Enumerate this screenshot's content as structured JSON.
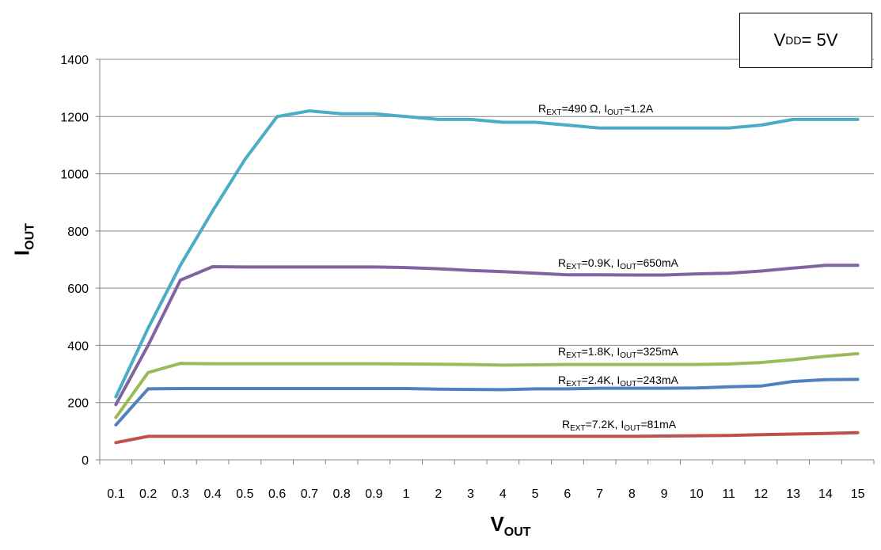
{
  "chart_data": {
    "type": "line",
    "title": "",
    "xlabel": {
      "main": "V",
      "sub": "OUT"
    },
    "ylabel": {
      "main": "I",
      "sub": "OUT"
    },
    "annotation_box": {
      "main": "V",
      "sub": "DD",
      "rest": " = 5V"
    },
    "categories": [
      "0.1",
      "0.2",
      "0.3",
      "0.4",
      "0.5",
      "0.6",
      "0.7",
      "0.8",
      "0.9",
      "1",
      "2",
      "3",
      "4",
      "5",
      "6",
      "7",
      "8",
      "9",
      "10",
      "11",
      "12",
      "13",
      "14",
      "15"
    ],
    "yticks": [
      "0",
      "200",
      "400",
      "600",
      "800",
      "1000",
      "1200",
      "1400"
    ],
    "ylim": [
      0,
      1400
    ],
    "grid": "horizontal",
    "series": [
      {
        "color": "#4BACC6",
        "label": {
          "parts": [
            "R",
            "EXT",
            "=490 Ω, I",
            "OUT",
            "=1.2A"
          ]
        },
        "values": [
          220,
          460,
          680,
          870,
          1050,
          1200,
          1220,
          1210,
          1210,
          1200,
          1190,
          1190,
          1180,
          1180,
          1170,
          1160,
          1160,
          1160,
          1160,
          1160,
          1170,
          1190,
          1190,
          1190
        ]
      },
      {
        "color": "#8064A2",
        "label": {
          "parts": [
            "R",
            "EXT",
            "=0.9K, I",
            "OUT",
            "=650mA"
          ]
        },
        "values": [
          193,
          400,
          628,
          675,
          674,
          674,
          674,
          674,
          674,
          672,
          668,
          662,
          658,
          652,
          647,
          647,
          646,
          646,
          650,
          652,
          660,
          670,
          680,
          680
        ]
      },
      {
        "color": "#9BBB59",
        "label": {
          "parts": [
            "R",
            "EXT",
            "=1.8K, I",
            "OUT",
            "=325mA"
          ]
        },
        "values": [
          148,
          305,
          337,
          336,
          336,
          336,
          336,
          336,
          336,
          335,
          334,
          333,
          331,
          332,
          333,
          333,
          333,
          333,
          333,
          335,
          340,
          350,
          362,
          371
        ]
      },
      {
        "color": "#4F81BD",
        "label": {
          "parts": [
            "R",
            "EXT",
            "=2.4K, I",
            "OUT",
            "=243mA"
          ]
        },
        "values": [
          122,
          248,
          249,
          249,
          249,
          249,
          249,
          249,
          249,
          249,
          247,
          246,
          245,
          248,
          248,
          250,
          250,
          250,
          251,
          255,
          258,
          274,
          280,
          281
        ]
      },
      {
        "color": "#C0504D",
        "label": {
          "parts": [
            "R",
            "EXT",
            "=7.2K, I",
            "OUT",
            "=81mA"
          ]
        },
        "values": [
          60,
          82,
          82,
          82,
          82,
          82,
          82,
          82,
          82,
          82,
          82,
          82,
          82,
          82,
          82,
          82,
          82,
          83,
          84,
          85,
          88,
          90,
          92,
          95
        ]
      }
    ]
  }
}
